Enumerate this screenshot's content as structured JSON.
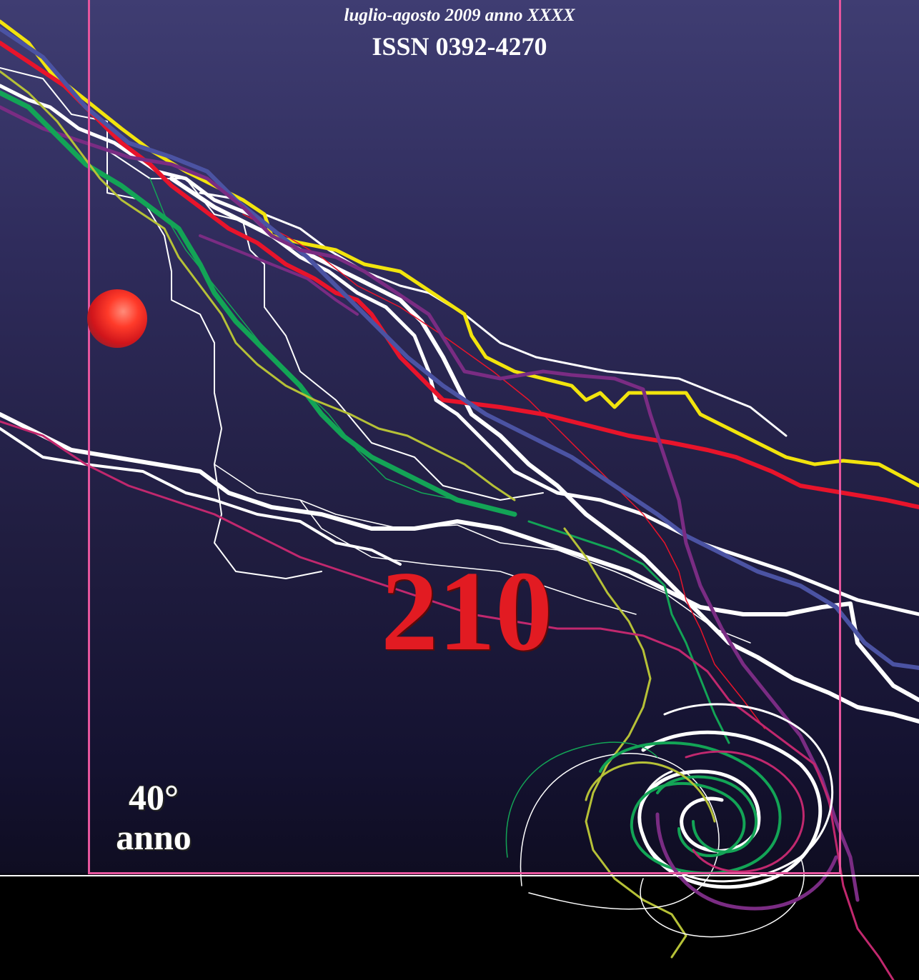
{
  "masthead": {
    "date_line": "luglio-agosto 2009 anno XXXX",
    "issn": "ISSN 0392-4270"
  },
  "issue_number": "210",
  "anniversary": {
    "line1": "40°",
    "line2": "anno"
  },
  "colors": {
    "background_top": "#3f3d72",
    "background_bottom": "#0f0d22",
    "frame": "#e5559d",
    "issue_number": "#e21b22",
    "track_white": "#ffffff",
    "track_yellow": "#f2e40d",
    "track_red": "#e8142b",
    "track_blue": "#4b53a3",
    "track_purple": "#7a2c83",
    "track_green": "#13a456",
    "track_olive": "#b6c137",
    "track_magenta": "#c1286e"
  }
}
